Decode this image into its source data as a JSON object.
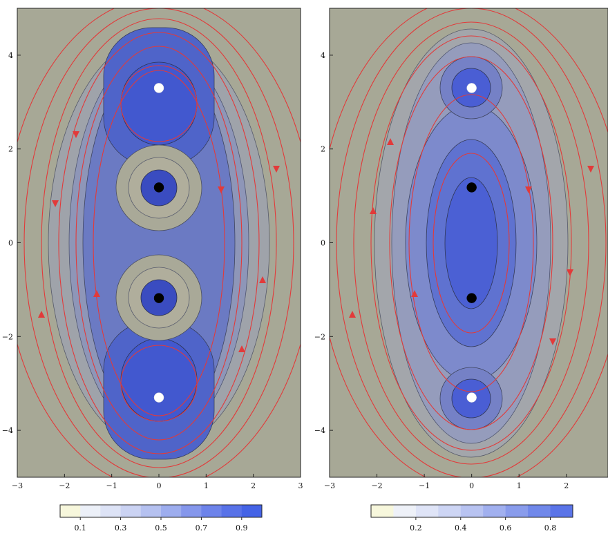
{
  "chart_data": [
    {
      "type": "contour",
      "panel": "left",
      "xlim": [
        -3,
        3
      ],
      "ylim": [
        -5,
        5
      ],
      "x_ticks": [
        -3,
        -2,
        -1,
        0,
        1,
        2,
        3
      ],
      "y_ticks": [
        -4,
        -2,
        0,
        2,
        4
      ],
      "x_tick_labels": [
        "−3",
        "−2",
        "−1",
        "0",
        "1",
        "2",
        "3"
      ],
      "y_tick_labels": [
        "−4",
        "−2",
        "0",
        "2",
        "4"
      ],
      "points": [
        {
          "x": 0,
          "y": 3.3,
          "color": "#ffffff"
        },
        {
          "x": 0,
          "y": 1.18,
          "color": "#000000"
        },
        {
          "x": 0,
          "y": -1.18,
          "color": "#000000"
        },
        {
          "x": 0,
          "y": -3.3,
          "color": "#ffffff"
        }
      ],
      "colorbar": {
        "levels": 10,
        "tick_values": [
          0.1,
          0.3,
          0.5,
          0.7,
          0.9
        ],
        "tick_labels": [
          "0.1",
          "0.3",
          "0.5",
          "0.7",
          "0.9"
        ],
        "range": [
          0,
          1
        ],
        "colors": [
          "#f7f7dc",
          "#ecf0f8",
          "#dde3f6",
          "#cbd3f3",
          "#b5c1f0",
          "#9dadee",
          "#8597ec",
          "#6d83ea",
          "#5872e8",
          "#4463e6"
        ]
      }
    },
    {
      "type": "contour",
      "panel": "right",
      "xlim": [
        -3,
        3
      ],
      "ylim": [
        -5,
        5
      ],
      "x_ticks": [
        -3,
        -2,
        -1,
        0,
        1,
        2
      ],
      "y_ticks": [
        -4,
        -2,
        0,
        2,
        4
      ],
      "x_tick_labels": [
        "−3",
        "−2",
        "−1",
        "0",
        "1",
        "2"
      ],
      "y_tick_labels": [
        "−4",
        "−2",
        "0",
        "2",
        "4"
      ],
      "points": [
        {
          "x": 0,
          "y": 3.3,
          "color": "#ffffff"
        },
        {
          "x": 0,
          "y": 1.18,
          "color": "#000000"
        },
        {
          "x": 0,
          "y": -1.18,
          "color": "#000000"
        },
        {
          "x": 0,
          "y": -3.3,
          "color": "#ffffff"
        }
      ],
      "colorbar": {
        "levels": 9,
        "tick_values": [
          0.2,
          0.4,
          0.6,
          0.8
        ],
        "tick_labels": [
          "0.2",
          "0.4",
          "0.6",
          "0.8"
        ],
        "range": [
          0,
          0.9
        ],
        "colors": [
          "#f7f7dc",
          "#eef1f8",
          "#dfe4f7",
          "#cdd5f4",
          "#b8c3f1",
          "#a1b0ef",
          "#899cec",
          "#7088ea",
          "#5a74e8"
        ]
      }
    }
  ]
}
